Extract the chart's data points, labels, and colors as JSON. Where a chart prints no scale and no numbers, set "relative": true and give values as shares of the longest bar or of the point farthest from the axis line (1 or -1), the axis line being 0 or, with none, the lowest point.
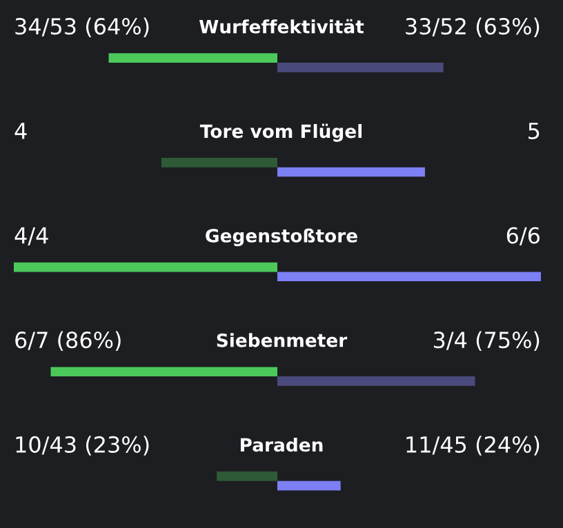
{
  "chart_data": {
    "type": "bar",
    "orientation": "horizontal",
    "relative": true,
    "categories": [
      "Wurfeffektivität",
      "Tore vom Flügel",
      "Gegenstoßtore",
      "Siebenmeter",
      "Paraden"
    ],
    "series": [
      {
        "values": [
          -0.64,
          -0.44,
          -1,
          -0.86,
          -0.23
        ],
        "colors": [
          "#4cc95a",
          "#2f5a37",
          "#4cc95a",
          "#4cc95a",
          "#2f5a37"
        ]
      },
      {
        "values": [
          0.63,
          0.56,
          1,
          0.75,
          0.24
        ],
        "colors": [
          "#4a4b7c",
          "#7d7ff5",
          "#7d7ff5",
          "#4a4b7c",
          "#7d7ff5"
        ]
      }
    ],
    "annotations": [
      "34/53 (64%)",
      "33/52 (63%)",
      "4",
      "5",
      "4/4",
      "6/6",
      "6/7 (86%)",
      "3/4 (75%)",
      "10/43 (23%)",
      "11/45 (24%)"
    ]
  }
}
